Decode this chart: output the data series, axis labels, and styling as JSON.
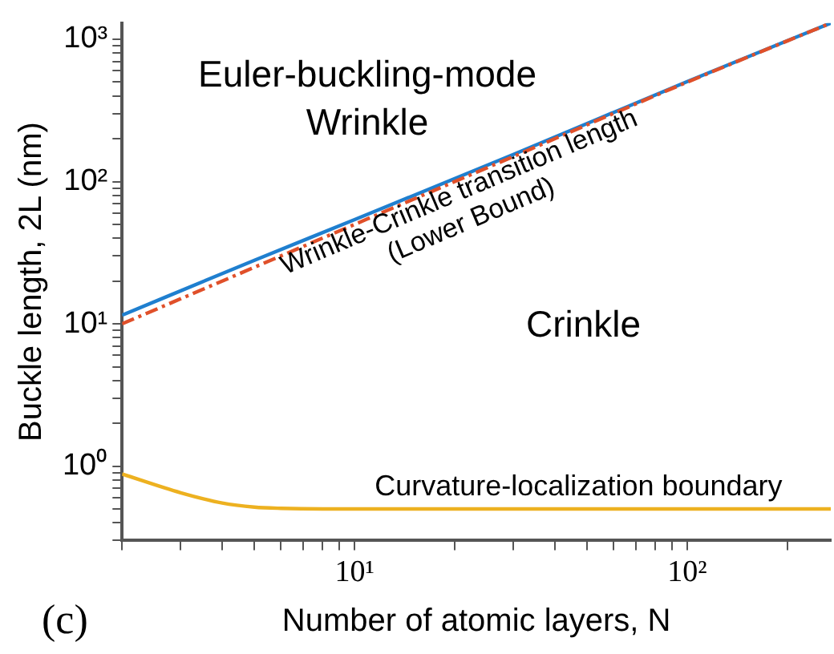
{
  "chart_data": {
    "type": "line",
    "xlabel": "Number of atomic layers, N",
    "ylabel": "Buckle length, 2L (nm)",
    "log": "xy",
    "grid": false,
    "legend": false,
    "marker": "none",
    "xlim": [
      2,
      270
    ],
    "ylim": [
      0.3,
      1300
    ],
    "xticks": [
      {
        "value": 2,
        "label": null
      },
      {
        "value": 3,
        "label": null
      },
      {
        "value": 4,
        "label": null
      },
      {
        "value": 5,
        "label": null
      },
      {
        "value": 6,
        "label": null
      },
      {
        "value": 7,
        "label": null
      },
      {
        "value": 8,
        "label": null
      },
      {
        "value": 9,
        "label": null
      },
      {
        "value": 10,
        "label": "10¹"
      },
      {
        "value": 20,
        "label": null
      },
      {
        "value": 30,
        "label": null
      },
      {
        "value": 40,
        "label": null
      },
      {
        "value": 50,
        "label": null
      },
      {
        "value": 60,
        "label": null
      },
      {
        "value": 70,
        "label": null
      },
      {
        "value": 80,
        "label": null
      },
      {
        "value": 90,
        "label": null
      },
      {
        "value": 100,
        "label": "10²"
      },
      {
        "value": 200,
        "label": null
      }
    ],
    "yticks": [
      {
        "value": 0.3,
        "label": null
      },
      {
        "value": 0.4,
        "label": null
      },
      {
        "value": 0.5,
        "label": null
      },
      {
        "value": 0.6,
        "label": null
      },
      {
        "value": 0.7,
        "label": null
      },
      {
        "value": 0.8,
        "label": null
      },
      {
        "value": 0.9,
        "label": null
      },
      {
        "value": 1,
        "label": "10⁰"
      },
      {
        "value": 2,
        "label": null
      },
      {
        "value": 3,
        "label": null
      },
      {
        "value": 4,
        "label": null
      },
      {
        "value": 5,
        "label": null
      },
      {
        "value": 6,
        "label": null
      },
      {
        "value": 7,
        "label": null
      },
      {
        "value": 8,
        "label": null
      },
      {
        "value": 9,
        "label": null
      },
      {
        "value": 10,
        "label": "10¹"
      },
      {
        "value": 20,
        "label": null
      },
      {
        "value": 30,
        "label": null
      },
      {
        "value": 40,
        "label": null
      },
      {
        "value": 50,
        "label": null
      },
      {
        "value": 60,
        "label": null
      },
      {
        "value": 70,
        "label": null
      },
      {
        "value": 80,
        "label": null
      },
      {
        "value": 90,
        "label": null
      },
      {
        "value": 100,
        "label": "10²"
      },
      {
        "value": 200,
        "label": null
      },
      {
        "value": 300,
        "label": null
      },
      {
        "value": 400,
        "label": null
      },
      {
        "value": 500,
        "label": null
      },
      {
        "value": 600,
        "label": null
      },
      {
        "value": 700,
        "label": null
      },
      {
        "value": 800,
        "label": null
      },
      {
        "value": 900,
        "label": null
      },
      {
        "value": 1000,
        "label": "10³"
      }
    ],
    "series": [
      {
        "color": "#1f7fcf",
        "x": [
          2,
          5,
          10,
          30,
          100,
          270
        ],
        "values": [
          11.5,
          28,
          54,
          155,
          505,
          1300
        ]
      },
      {
        "color": "#e0502a",
        "line_style": "dashed",
        "x": [
          2,
          5,
          10,
          30,
          100,
          270
        ],
        "values": [
          10,
          25,
          50,
          150,
          500,
          1300
        ]
      },
      {
        "color": "#edb120",
        "x": [
          2,
          3,
          4,
          5,
          6,
          8,
          270
        ],
        "values": [
          0.88,
          0.65,
          0.55,
          0.515,
          0.505,
          0.5,
          0.5
        ]
      }
    ],
    "annotations": [
      "Euler-buckling-mode\nWrinkle",
      "Wrinkle-Crinkle transition length\n(Lower Bound)",
      "Crinkle",
      "Curvature-localization boundary",
      "(c)"
    ]
  }
}
